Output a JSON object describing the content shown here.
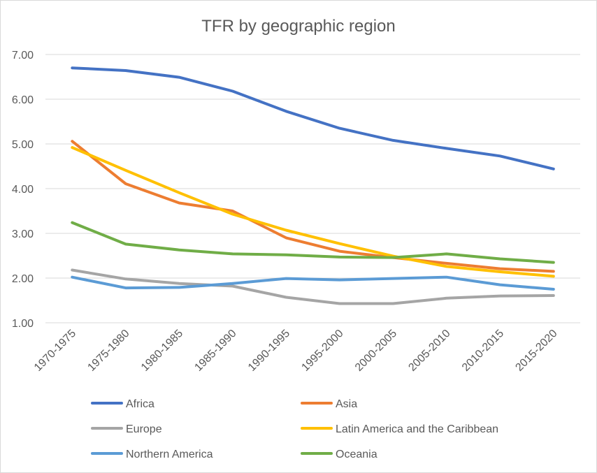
{
  "chart_data": {
    "type": "line",
    "title": "TFR by geographic region",
    "xlabel": "",
    "ylabel": "",
    "categories": [
      "1970-1975",
      "1975-1980",
      "1980-1985",
      "1985-1990",
      "1990-1995",
      "1995-2000",
      "2000-2005",
      "2005-2010",
      "2010-2015",
      "2015-2020"
    ],
    "ylim": [
      1.0,
      7.0
    ],
    "yticks": [
      "1.00",
      "2.00",
      "3.00",
      "4.00",
      "5.00",
      "6.00",
      "7.00"
    ],
    "grid": true,
    "legend_position": "bottom",
    "series": [
      {
        "name": "Africa",
        "color": "#4472c4",
        "values": [
          6.7,
          6.64,
          6.49,
          6.18,
          5.73,
          5.35,
          5.08,
          4.9,
          4.73,
          4.44
        ]
      },
      {
        "name": "Asia",
        "color": "#ed7d31",
        "values": [
          5.06,
          4.11,
          3.68,
          3.5,
          2.9,
          2.6,
          2.46,
          2.33,
          2.21,
          2.15
        ]
      },
      {
        "name": "Europe",
        "color": "#a5a5a5",
        "values": [
          2.18,
          1.98,
          1.88,
          1.82,
          1.57,
          1.43,
          1.43,
          1.55,
          1.6,
          1.61
        ]
      },
      {
        "name": "Latin America and the Caribbean",
        "color": "#ffc000",
        "values": [
          4.92,
          4.41,
          3.91,
          3.43,
          3.07,
          2.77,
          2.49,
          2.26,
          2.14,
          2.04
        ]
      },
      {
        "name": "Northern America",
        "color": "#5b9bd5",
        "values": [
          2.02,
          1.78,
          1.79,
          1.88,
          1.99,
          1.96,
          1.99,
          2.02,
          1.85,
          1.75
        ]
      },
      {
        "name": "Oceania",
        "color": "#70ad47",
        "values": [
          3.24,
          2.76,
          2.63,
          2.54,
          2.52,
          2.47,
          2.46,
          2.54,
          2.43,
          2.35
        ]
      }
    ]
  }
}
